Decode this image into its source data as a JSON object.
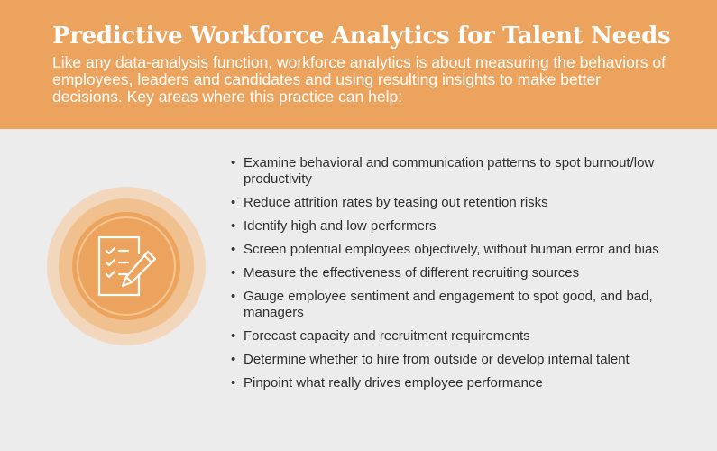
{
  "header": {
    "title": "Predictive Workforce Analytics for Talent Needs",
    "intro": "Like any data-analysis function, workforce analytics is about measuring the behaviors of employees, leaders and candidates and using resulting insights to make better decisions. Key areas where this practice can help:"
  },
  "colors": {
    "header_bg": "#eca35d",
    "body_bg": "#ececec",
    "icon_circle": "#eca35d",
    "text": "#2f2f2f"
  },
  "icon": {
    "name": "checklist-pencil-icon"
  },
  "bullets": [
    "Examine behavioral and communication patterns to spot burnout/low productivity",
    "Reduce attrition rates by teasing out retention risks",
    "Identify high and low performers",
    "Screen potential employees objectively, without human error and bias",
    "Measure the effectiveness of different recruiting sources",
    "Gauge employee sentiment and engagement to spot good, and bad, managers",
    " Forecast capacity and recruitment requirements",
    " Determine whether to hire from outside or develop internal talent",
    " Pinpoint what really drives employee performance"
  ]
}
